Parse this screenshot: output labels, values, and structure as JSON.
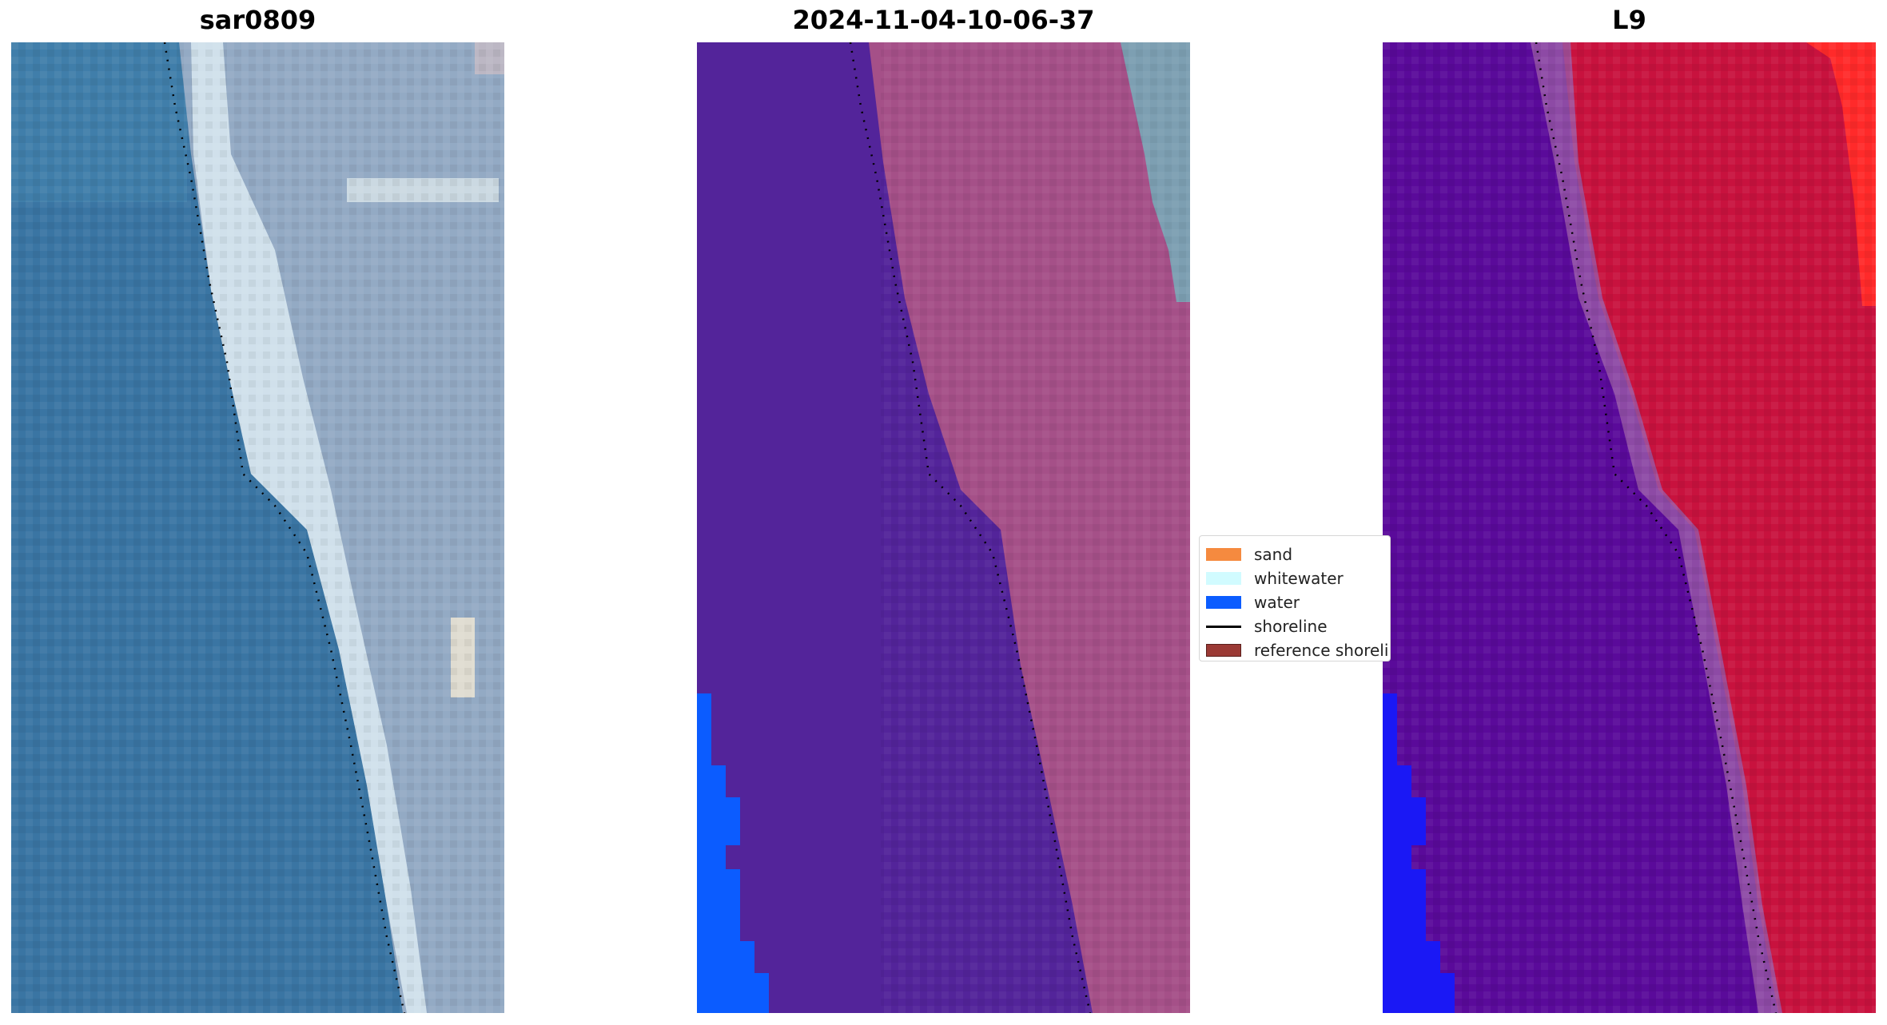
{
  "panels": [
    {
      "title": "sar0809"
    },
    {
      "title": "2024-11-04-10-06-37"
    },
    {
      "title": "L9"
    }
  ],
  "legend": {
    "items": [
      {
        "label": "sand",
        "color": "#f58a3f",
        "kind": "patch"
      },
      {
        "label": "whitewater",
        "color": "#d1fbff",
        "kind": "patch"
      },
      {
        "label": "water",
        "color": "#0b5cff",
        "kind": "patch"
      },
      {
        "label": "shoreline",
        "color": "#000000",
        "kind": "line"
      },
      {
        "label": "reference shoreline",
        "color": "#9b3a35",
        "kind": "patch"
      }
    ]
  },
  "colors": {
    "ocean_rgb": "#3a75a3",
    "land_rgb": "#93aac4",
    "surf_rgb": "#dbeaf2",
    "class_water_overlay": "#53249a",
    "class_land_overlay": "#a55088",
    "class_water_edge": "#0b5cff",
    "index_water": "#5a0a9a",
    "index_land": "#c8123e",
    "index_edge": "#1a18f5",
    "index_hot": "#ff2a2a"
  }
}
